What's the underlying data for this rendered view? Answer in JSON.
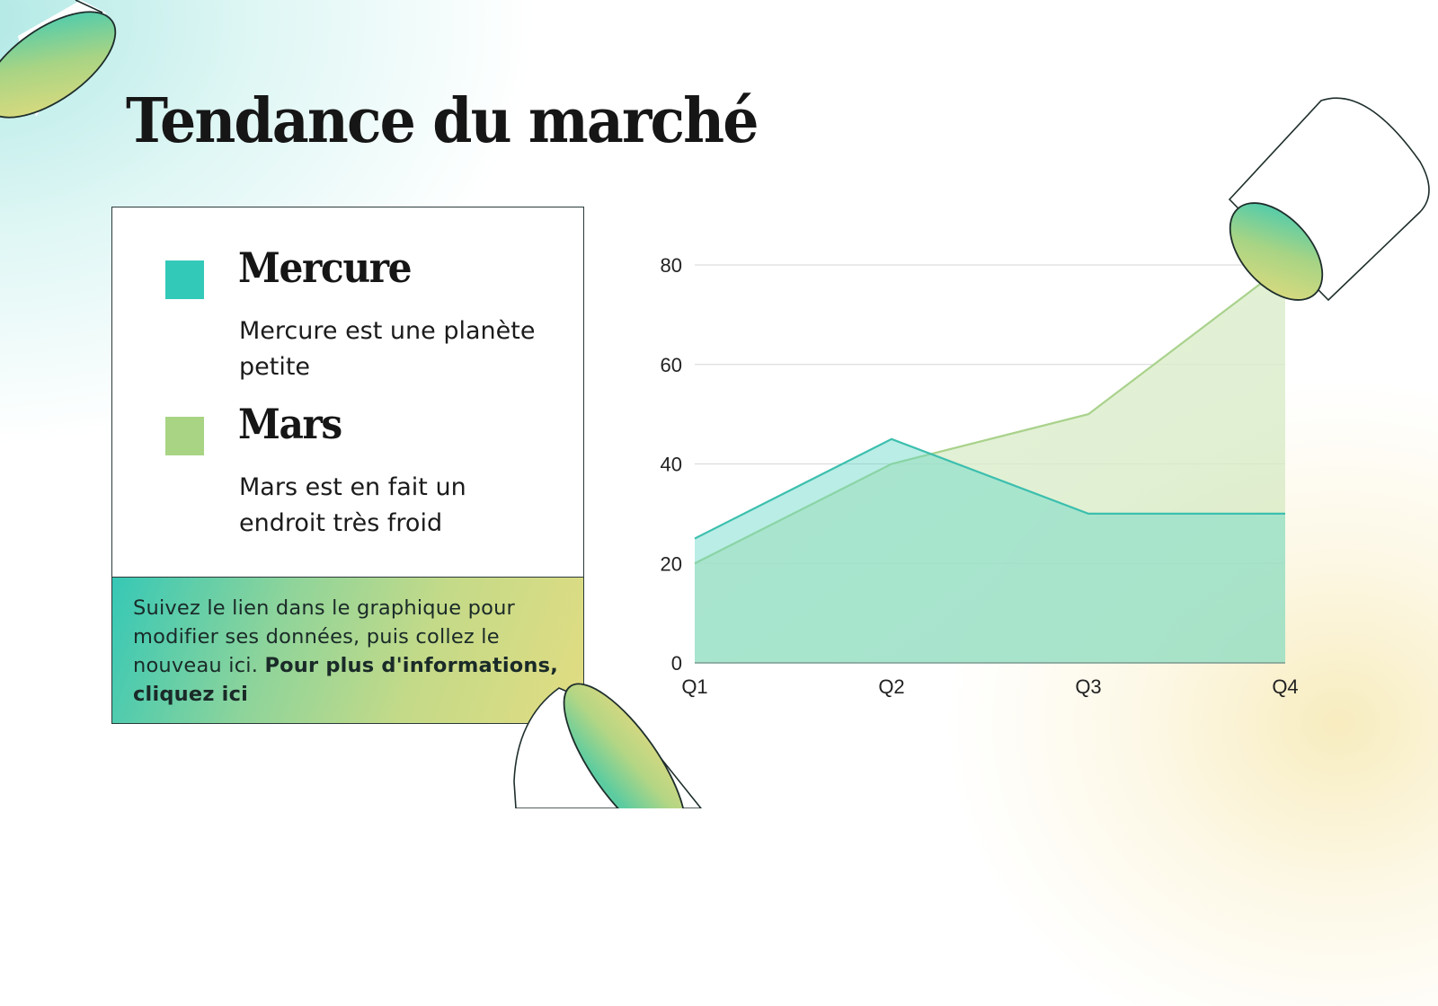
{
  "slide": {
    "title": "Tendance du marché"
  },
  "legend": {
    "items": [
      {
        "name": "Mercure",
        "description": "Mercure est une planète petite",
        "color": "#33c9b9"
      },
      {
        "name": "Mars",
        "description": "Mars est en fait un endroit très froid",
        "color": "#a8d484"
      }
    ]
  },
  "note": {
    "text": "Suivez le lien dans le graphique pour modifier ses données, puis collez le nouveau ici. ",
    "link_text": "Pour plus d'informations, cliquez ici"
  },
  "colors": {
    "accent_teal": "#33c9b9",
    "accent_green": "#a8d484",
    "accent_yellow": "#e5dc80",
    "text_dark": "#161616"
  },
  "chart_data": {
    "type": "area",
    "title": "",
    "categories": [
      "Q1",
      "Q2",
      "Q3",
      "Q4"
    ],
    "series": [
      {
        "name": "Mercure",
        "values": [
          25,
          45,
          30,
          30
        ],
        "color": "#33c9b9"
      },
      {
        "name": "Mars",
        "values": [
          20,
          40,
          50,
          80
        ],
        "color": "#a8d484"
      }
    ],
    "xlabel": "",
    "ylabel": "",
    "ylim": [
      0,
      80
    ],
    "yticks": [
      0,
      20,
      40,
      60,
      80
    ],
    "grid": true,
    "legend_position": "left (separate panel)"
  }
}
